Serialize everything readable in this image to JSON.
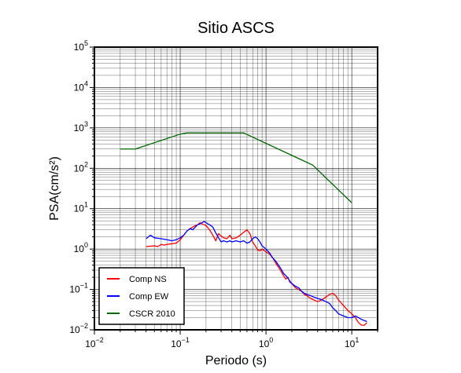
{
  "chart_data": {
    "type": "line",
    "title": "Sitio ASCS",
    "xlabel": "Periodo (s)",
    "ylabel": "PSA(cm/s²)",
    "xscale": "log",
    "yscale": "log",
    "xlim": [
      0.01,
      20
    ],
    "ylim": [
      0.01,
      100000
    ],
    "grid": true,
    "legend_position": "bottom-left",
    "x_ticks": [
      {
        "base": "10",
        "exp": "−2"
      },
      {
        "base": "10",
        "exp": "−1"
      },
      {
        "base": "10",
        "exp": "0"
      },
      {
        "base": "10",
        "exp": "1"
      }
    ],
    "y_ticks": [
      {
        "base": "10",
        "exp": "−2"
      },
      {
        "base": "10",
        "exp": "−1"
      },
      {
        "base": "10",
        "exp": "0"
      },
      {
        "base": "10",
        "exp": "1"
      },
      {
        "base": "10",
        "exp": "2"
      },
      {
        "base": "10",
        "exp": "3"
      },
      {
        "base": "10",
        "exp": "4"
      },
      {
        "base": "10",
        "exp": "5"
      }
    ],
    "series": [
      {
        "name": "Comp NS",
        "color": "#ff0000",
        "points": [
          [
            0.04,
            1.15
          ],
          [
            0.05,
            1.2
          ],
          [
            0.055,
            1.15
          ],
          [
            0.06,
            1.3
          ],
          [
            0.065,
            1.25
          ],
          [
            0.07,
            1.3
          ],
          [
            0.08,
            1.35
          ],
          [
            0.09,
            1.4
          ],
          [
            0.1,
            1.7
          ],
          [
            0.11,
            2.2
          ],
          [
            0.12,
            2.8
          ],
          [
            0.13,
            3.2
          ],
          [
            0.14,
            3.5
          ],
          [
            0.15,
            3.8
          ],
          [
            0.16,
            4.0
          ],
          [
            0.17,
            4.5
          ],
          [
            0.18,
            4.2
          ],
          [
            0.2,
            3.8
          ],
          [
            0.22,
            3.0
          ],
          [
            0.24,
            2.2
          ],
          [
            0.26,
            1.6
          ],
          [
            0.28,
            2.4
          ],
          [
            0.3,
            2.1
          ],
          [
            0.32,
            1.9
          ],
          [
            0.35,
            1.8
          ],
          [
            0.38,
            2.2
          ],
          [
            0.4,
            1.8
          ],
          [
            0.45,
            1.9
          ],
          [
            0.5,
            2.2
          ],
          [
            0.55,
            2.6
          ],
          [
            0.6,
            3.0
          ],
          [
            0.65,
            2.4
          ],
          [
            0.7,
            1.5
          ],
          [
            0.75,
            1.2
          ],
          [
            0.8,
            0.95
          ],
          [
            0.85,
            0.9
          ],
          [
            0.9,
            1.0
          ],
          [
            1.0,
            0.85
          ],
          [
            1.1,
            0.75
          ],
          [
            1.2,
            0.6
          ],
          [
            1.3,
            0.45
          ],
          [
            1.4,
            0.35
          ],
          [
            1.5,
            0.28
          ],
          [
            1.6,
            0.22
          ],
          [
            1.7,
            0.18
          ],
          [
            1.8,
            0.2
          ],
          [
            1.9,
            0.15
          ],
          [
            2.0,
            0.14
          ],
          [
            2.2,
            0.11
          ],
          [
            2.4,
            0.1
          ],
          [
            2.6,
            0.09
          ],
          [
            2.8,
            0.075
          ],
          [
            3.0,
            0.07
          ],
          [
            3.3,
            0.06
          ],
          [
            3.6,
            0.055
          ],
          [
            4.0,
            0.05
          ],
          [
            4.5,
            0.055
          ],
          [
            5.0,
            0.065
          ],
          [
            5.5,
            0.075
          ],
          [
            6.0,
            0.08
          ],
          [
            6.5,
            0.07
          ],
          [
            7.0,
            0.055
          ],
          [
            8.0,
            0.04
          ],
          [
            9.0,
            0.03
          ],
          [
            10.0,
            0.025
          ],
          [
            11.0,
            0.02
          ],
          [
            12.0,
            0.015
          ],
          [
            13.0,
            0.013
          ],
          [
            14.0,
            0.013
          ],
          [
            15.0,
            0.015
          ]
        ]
      },
      {
        "name": "Comp EW",
        "color": "#0000ff",
        "points": [
          [
            0.04,
            1.8
          ],
          [
            0.045,
            2.2
          ],
          [
            0.05,
            1.9
          ],
          [
            0.06,
            1.8
          ],
          [
            0.07,
            1.7
          ],
          [
            0.08,
            1.6
          ],
          [
            0.09,
            1.7
          ],
          [
            0.1,
            1.9
          ],
          [
            0.11,
            2.2
          ],
          [
            0.12,
            2.8
          ],
          [
            0.13,
            3.2
          ],
          [
            0.14,
            3.0
          ],
          [
            0.15,
            3.5
          ],
          [
            0.16,
            4.0
          ],
          [
            0.17,
            4.2
          ],
          [
            0.18,
            4.5
          ],
          [
            0.19,
            4.8
          ],
          [
            0.2,
            4.5
          ],
          [
            0.21,
            4.2
          ],
          [
            0.22,
            4.0
          ],
          [
            0.24,
            3.5
          ],
          [
            0.26,
            2.5
          ],
          [
            0.28,
            1.9
          ],
          [
            0.3,
            1.5
          ],
          [
            0.32,
            1.6
          ],
          [
            0.35,
            1.5
          ],
          [
            0.38,
            1.6
          ],
          [
            0.4,
            1.5
          ],
          [
            0.45,
            1.6
          ],
          [
            0.5,
            1.5
          ],
          [
            0.55,
            1.6
          ],
          [
            0.6,
            1.4
          ],
          [
            0.65,
            1.5
          ],
          [
            0.7,
            1.8
          ],
          [
            0.75,
            2.0
          ],
          [
            0.8,
            1.8
          ],
          [
            0.85,
            1.5
          ],
          [
            0.9,
            1.2
          ],
          [
            1.0,
            1.0
          ],
          [
            1.1,
            0.8
          ],
          [
            1.2,
            0.6
          ],
          [
            1.3,
            0.5
          ],
          [
            1.4,
            0.4
          ],
          [
            1.5,
            0.32
          ],
          [
            1.6,
            0.25
          ],
          [
            1.7,
            0.22
          ],
          [
            1.8,
            0.19
          ],
          [
            1.9,
            0.16
          ],
          [
            2.0,
            0.14
          ],
          [
            2.2,
            0.12
          ],
          [
            2.4,
            0.11
          ],
          [
            2.6,
            0.09
          ],
          [
            2.8,
            0.08
          ],
          [
            3.0,
            0.075
          ],
          [
            3.3,
            0.07
          ],
          [
            3.6,
            0.065
          ],
          [
            4.0,
            0.06
          ],
          [
            4.5,
            0.055
          ],
          [
            5.0,
            0.05
          ],
          [
            5.5,
            0.045
          ],
          [
            6.0,
            0.035
          ],
          [
            6.5,
            0.03
          ],
          [
            7.0,
            0.025
          ],
          [
            8.0,
            0.022
          ],
          [
            9.0,
            0.02
          ],
          [
            10.0,
            0.02
          ],
          [
            11.0,
            0.022
          ],
          [
            12.0,
            0.02
          ],
          [
            13.0,
            0.018
          ],
          [
            14.0,
            0.017
          ],
          [
            15.0,
            0.016
          ]
        ]
      },
      {
        "name": "CSCR 2010",
        "color": "#006400",
        "points": [
          [
            0.02,
            300
          ],
          [
            0.03,
            300
          ],
          [
            0.1,
            700
          ],
          [
            0.12,
            750
          ],
          [
            0.55,
            750
          ],
          [
            3.5,
            120
          ],
          [
            10.0,
            14
          ]
        ]
      }
    ]
  }
}
